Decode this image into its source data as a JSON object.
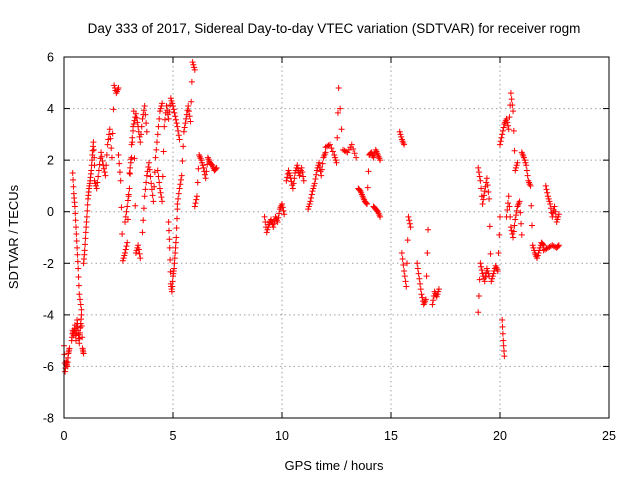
{
  "chart_data": {
    "type": "scatter",
    "title": "Day 333 of 2017, Sidereal Day-to-day VTEC variation (SDTVAR) for receiver rogm",
    "xlabel": "GPS time / hours",
    "ylabel": "SDTVAR / TECUs",
    "xlim": [
      0,
      25
    ],
    "ylim": [
      -8,
      6
    ],
    "xticks": [
      0,
      5,
      10,
      15,
      20,
      25
    ],
    "yticks": [
      -8,
      -6,
      -4,
      -2,
      0,
      2,
      4,
      6
    ],
    "xtick_labels": [
      "0",
      "5",
      "10",
      "15",
      "20",
      "25"
    ],
    "ytick_labels": [
      "-8",
      "-6",
      "-4",
      "-2",
      "0",
      "2",
      "4",
      "6"
    ],
    "grid": true,
    "marker": "+",
    "series": [
      {
        "name": "SDTVAR",
        "color": "#ff0000",
        "segments": [
          {
            "x": [
              0.0,
              0.05,
              0.1,
              0.15,
              0.2,
              0.25
            ],
            "y": [
              -5.2,
              -6.2,
              -5.8,
              -6.0,
              -5.5,
              -5.3
            ]
          },
          {
            "x": [
              0.35,
              0.4,
              0.45,
              0.5,
              0.55,
              0.6,
              0.65,
              0.7,
              0.75,
              0.8,
              0.85,
              0.9
            ],
            "y": [
              -5.0,
              -4.6,
              -4.8,
              -4.4,
              -5.0,
              -4.2,
              -4.6,
              -5.1,
              -4.5,
              -4.0,
              -5.3,
              -5.5
            ]
          },
          {
            "x": [
              0.4,
              0.45,
              0.5,
              0.55,
              0.6,
              0.65,
              0.7,
              0.8
            ],
            "y": [
              1.5,
              0.7,
              0.2,
              -0.6,
              -1.4,
              -2.2,
              -3.2,
              -3.8
            ]
          },
          {
            "x": [
              0.9,
              0.95,
              1.0,
              1.05,
              1.1,
              1.15,
              1.2,
              1.25,
              1.3,
              1.35,
              1.4
            ],
            "y": [
              -2.0,
              -1.5,
              -0.8,
              -0.2,
              0.5,
              0.9,
              1.2,
              1.6,
              2.2,
              2.7,
              1.8
            ]
          },
          {
            "x": [
              1.4,
              1.5,
              1.6,
              1.7,
              1.8,
              1.9,
              2.0,
              2.1,
              2.2,
              2.3,
              2.4,
              2.5
            ],
            "y": [
              1.2,
              0.9,
              1.6,
              2.3,
              1.8,
              1.4,
              2.6,
              3.2,
              2.1,
              4.9,
              4.6,
              4.8
            ]
          },
          {
            "x": [
              2.5,
              2.6,
              2.7,
              2.8,
              2.9,
              3.0,
              3.1,
              3.2,
              3.3,
              3.4,
              3.5
            ],
            "y": [
              2.2,
              1.2,
              -1.9,
              -1.6,
              -1.2,
              1.5,
              2.1,
              3.9,
              -1.6,
              -1.3,
              -1.8
            ]
          },
          {
            "x": [
              2.8,
              2.9,
              3.0,
              3.1,
              3.2,
              3.3,
              3.4,
              3.5,
              3.6,
              3.7,
              3.8
            ],
            "y": [
              -0.4,
              0.2,
              0.9,
              2.6,
              3.4,
              3.8,
              3.3,
              2.7,
              3.6,
              4.1,
              3.1
            ]
          },
          {
            "x": [
              3.6,
              3.7,
              3.8,
              3.9,
              4.0,
              4.1,
              4.2,
              4.3,
              4.4,
              4.5
            ],
            "y": [
              -0.8,
              0.6,
              1.4,
              1.9,
              1.1,
              0.4,
              2.1,
              3.0,
              3.9,
              4.2
            ]
          },
          {
            "x": [
              4.3,
              4.4,
              4.5,
              4.6,
              4.7,
              4.8,
              4.9,
              5.0,
              5.1,
              5.2,
              5.3
            ],
            "y": [
              1.6,
              0.9,
              0.4,
              3.3,
              4.1,
              3.6,
              4.4,
              4.1,
              3.7,
              3.3,
              2.8
            ]
          },
          {
            "x": [
              4.8,
              4.85,
              4.9,
              4.95,
              5.0,
              5.05,
              5.1,
              5.15,
              5.2
            ],
            "y": [
              -0.4,
              -1.4,
              -2.8,
              -3.1,
              -2.5,
              -2.2,
              -1.6,
              -1.0,
              0.1
            ]
          },
          {
            "x": [
              5.2,
              5.3,
              5.4,
              5.5,
              5.6,
              5.7,
              5.8,
              5.9,
              6.0
            ],
            "y": [
              0.3,
              0.9,
              1.4,
              3.1,
              3.6,
              4.1,
              3.5,
              5.8,
              5.5
            ]
          },
          {
            "x": [
              6.0,
              6.1,
              6.2,
              6.3,
              6.4,
              6.5,
              6.6,
              6.7,
              6.8,
              6.9,
              7.0
            ],
            "y": [
              0.2,
              0.6,
              2.2,
              2.0,
              1.7,
              1.3,
              2.1,
              1.9,
              1.8,
              1.6,
              1.7
            ]
          },
          {
            "x": [
              9.2,
              9.3,
              9.4,
              9.5,
              9.6,
              9.7,
              9.8,
              9.9,
              10.0,
              10.1
            ],
            "y": [
              -0.2,
              -0.8,
              -0.5,
              -0.3,
              -0.6,
              -0.2,
              -0.4,
              0.1,
              0.3,
              -0.1
            ]
          },
          {
            "x": [
              10.2,
              10.3,
              10.4,
              10.5,
              10.6,
              10.7,
              10.8,
              10.9,
              11.0
            ],
            "y": [
              1.2,
              1.6,
              1.3,
              0.9,
              1.5,
              1.8,
              1.4,
              1.7,
              1.2
            ]
          },
          {
            "x": [
              11.2,
              11.3,
              11.4,
              11.5,
              11.6,
              11.7,
              11.8,
              11.9,
              12.0
            ],
            "y": [
              0.1,
              0.4,
              0.8,
              1.1,
              1.6,
              1.9,
              1.4,
              2.1,
              2.3
            ]
          },
          {
            "x": [
              12.0,
              12.2,
              12.4,
              12.5,
              12.6,
              12.8,
              13.0,
              13.2,
              13.4
            ],
            "y": [
              2.5,
              2.6,
              2.2,
              1.9,
              4.8,
              2.4,
              2.3,
              2.6,
              2.1
            ]
          },
          {
            "x": [
              13.5,
              13.6,
              13.7,
              13.8,
              13.9,
              14.0,
              14.1,
              14.2,
              14.3,
              14.4,
              14.5
            ],
            "y": [
              0.9,
              0.8,
              0.6,
              0.4,
              0.3,
              2.2,
              2.3,
              2.1,
              2.4,
              2.2,
              2.0
            ]
          },
          {
            "x": [
              14.2,
              14.3,
              14.4,
              14.5
            ],
            "y": [
              0.2,
              0.1,
              0.0,
              -0.2
            ]
          },
          {
            "x": [
              15.4,
              15.5,
              15.6
            ],
            "y": [
              3.1,
              2.8,
              2.6
            ]
          },
          {
            "x": [
              15.5,
              15.6,
              15.7,
              15.8,
              15.9
            ],
            "y": [
              -1.6,
              -2.3,
              -2.9,
              -0.2,
              -0.6
            ]
          },
          {
            "x": [
              16.2,
              16.3,
              16.4,
              16.5,
              16.6,
              16.7
            ],
            "y": [
              -2.0,
              -2.6,
              -3.2,
              -3.6,
              -3.4,
              -0.7
            ]
          },
          {
            "x": [
              16.9,
              17.0,
              17.1,
              17.2
            ],
            "y": [
              -3.6,
              -3.1,
              -3.3,
              -3.0
            ]
          },
          {
            "x": [
              19.0,
              19.1,
              19.2,
              19.3,
              19.4,
              19.5,
              19.6,
              19.7,
              19.8,
              19.9,
              20.0
            ],
            "y": [
              1.7,
              1.2,
              0.3,
              0.8,
              1.3,
              0.5,
              -2.7,
              -2.4,
              -2.1,
              -2.3,
              -0.2
            ]
          },
          {
            "x": [
              19.0,
              19.1,
              19.2,
              19.3,
              19.4,
              19.5
            ],
            "y": [
              -3.9,
              -2.0,
              -2.4,
              -2.7,
              -2.2,
              -2.5
            ]
          },
          {
            "x": [
              20.0,
              20.1,
              20.2,
              20.3,
              20.4,
              20.5,
              20.6,
              20.7,
              20.8
            ],
            "y": [
              2.6,
              3.0,
              3.4,
              3.6,
              3.2,
              4.6,
              3.9,
              1.6,
              1.9
            ]
          },
          {
            "x": [
              20.1,
              20.15,
              20.2
            ],
            "y": [
              -4.2,
              -5.0,
              -5.6
            ]
          },
          {
            "x": [
              20.3,
              20.4,
              20.5,
              20.6,
              20.7,
              20.8,
              20.9,
              21.0
            ],
            "y": [
              -0.2,
              0.6,
              -0.6,
              -1.0,
              -0.3,
              0.2,
              0.4,
              -0.9
            ]
          },
          {
            "x": [
              21.0,
              21.1,
              21.2,
              21.3,
              21.4,
              21.5,
              21.6,
              21.7,
              21.8,
              21.9,
              22.0
            ],
            "y": [
              2.3,
              2.1,
              1.8,
              1.2,
              1.0,
              -1.3,
              -1.6,
              -1.8,
              -1.5,
              -1.2,
              -1.3
            ]
          },
          {
            "x": [
              22.0,
              22.2,
              22.4,
              22.6,
              22.7
            ],
            "y": [
              -1.5,
              -1.4,
              -1.3,
              -1.4,
              -1.3
            ]
          },
          {
            "x": [
              22.1,
              22.2,
              22.3,
              22.4,
              22.5,
              22.6,
              22.7
            ],
            "y": [
              1.0,
              0.6,
              0.3,
              -0.2,
              0.2,
              -0.4,
              -0.1
            ]
          }
        ]
      }
    ]
  }
}
